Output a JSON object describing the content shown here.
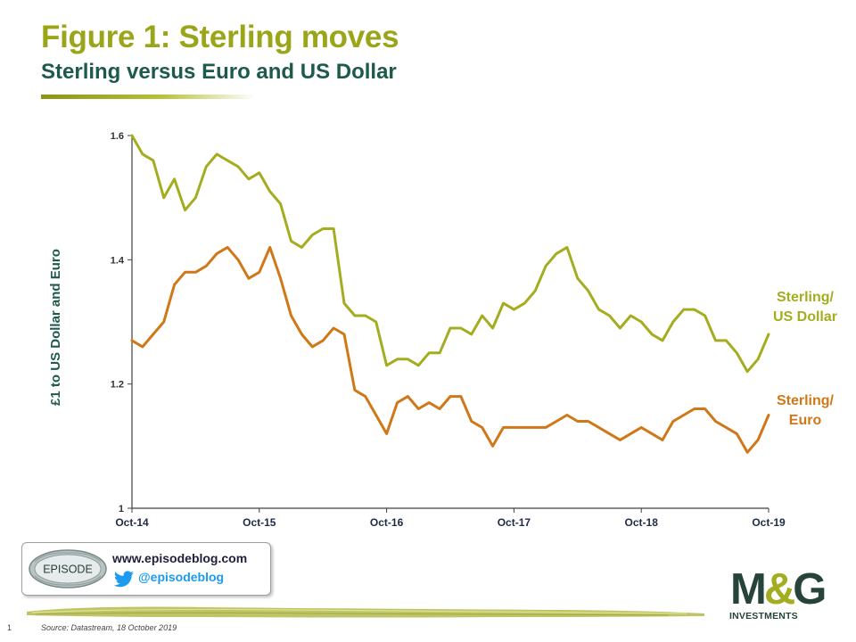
{
  "title": "Figure 1: Sterling moves",
  "subtitle": "Sterling versus Euro and US Dollar",
  "footer": {
    "page_number": "1",
    "source": "Source: Datastream, 18 October 2019"
  },
  "badge": {
    "logo_text": "EPISODE",
    "url": "www.episodeblog.com",
    "handle": "@episodeblog"
  },
  "brand": {
    "m": "M",
    "amp": "&",
    "g": "G",
    "sub": "INVESTMENTS"
  },
  "colors": {
    "title_green": "#9aa519",
    "dark_teal": "#1d5a4b",
    "usd_line": "#a3ad1f",
    "eur_line": "#d07818",
    "axis": "#404040"
  },
  "chart_data": {
    "type": "line",
    "title": "",
    "ylabel": "£1 to US Dollar and Euro",
    "xlabel": "",
    "ylim": [
      1,
      1.6
    ],
    "yticks": [
      "1",
      "1.2",
      "1.4",
      "1.6"
    ],
    "xtick_labels": [
      "Oct-14",
      "Oct-15",
      "Oct-16",
      "Oct-17",
      "Oct-18",
      "Oct-19"
    ],
    "x": [
      "2014-10",
      "2014-11",
      "2014-12",
      "2015-01",
      "2015-02",
      "2015-03",
      "2015-04",
      "2015-05",
      "2015-06",
      "2015-07",
      "2015-08",
      "2015-09",
      "2015-10",
      "2015-11",
      "2015-12",
      "2016-01",
      "2016-02",
      "2016-03",
      "2016-04",
      "2016-05",
      "2016-06",
      "2016-07",
      "2016-08",
      "2016-09",
      "2016-10",
      "2016-11",
      "2016-12",
      "2017-01",
      "2017-02",
      "2017-03",
      "2017-04",
      "2017-05",
      "2017-06",
      "2017-07",
      "2017-08",
      "2017-09",
      "2017-10",
      "2017-11",
      "2017-12",
      "2018-01",
      "2018-02",
      "2018-03",
      "2018-04",
      "2018-05",
      "2018-06",
      "2018-07",
      "2018-08",
      "2018-09",
      "2018-10",
      "2018-11",
      "2018-12",
      "2019-01",
      "2019-02",
      "2019-03",
      "2019-04",
      "2019-05",
      "2019-06",
      "2019-07",
      "2019-08",
      "2019-09",
      "2019-10"
    ],
    "grid": false,
    "legend": "direct labels at right end of lines",
    "series": [
      {
        "name": "Sterling/ US Dollar",
        "label_lines": [
          "Sterling/",
          "US Dollar"
        ],
        "values": [
          1.6,
          1.57,
          1.56,
          1.5,
          1.53,
          1.48,
          1.5,
          1.55,
          1.57,
          1.56,
          1.55,
          1.53,
          1.54,
          1.51,
          1.49,
          1.43,
          1.42,
          1.44,
          1.45,
          1.45,
          1.33,
          1.31,
          1.31,
          1.3,
          1.23,
          1.24,
          1.24,
          1.23,
          1.25,
          1.25,
          1.29,
          1.29,
          1.28,
          1.31,
          1.29,
          1.33,
          1.32,
          1.33,
          1.35,
          1.39,
          1.41,
          1.42,
          1.37,
          1.35,
          1.32,
          1.31,
          1.29,
          1.31,
          1.3,
          1.28,
          1.27,
          1.3,
          1.32,
          1.32,
          1.31,
          1.27,
          1.27,
          1.25,
          1.22,
          1.24,
          1.28
        ],
        "color": "#a3ad1f"
      },
      {
        "name": "Sterling/ Euro",
        "label_lines": [
          "Sterling/",
          "Euro"
        ],
        "values": [
          1.27,
          1.26,
          1.28,
          1.3,
          1.36,
          1.38,
          1.38,
          1.39,
          1.41,
          1.42,
          1.4,
          1.37,
          1.38,
          1.42,
          1.37,
          1.31,
          1.28,
          1.26,
          1.27,
          1.29,
          1.28,
          1.19,
          1.18,
          1.15,
          1.12,
          1.17,
          1.18,
          1.16,
          1.17,
          1.16,
          1.18,
          1.18,
          1.14,
          1.13,
          1.1,
          1.13,
          1.13,
          1.13,
          1.13,
          1.13,
          1.14,
          1.15,
          1.14,
          1.14,
          1.13,
          1.12,
          1.11,
          1.12,
          1.13,
          1.12,
          1.11,
          1.14,
          1.15,
          1.16,
          1.16,
          1.14,
          1.13,
          1.12,
          1.09,
          1.11,
          1.15
        ],
        "color": "#d07818"
      }
    ]
  }
}
